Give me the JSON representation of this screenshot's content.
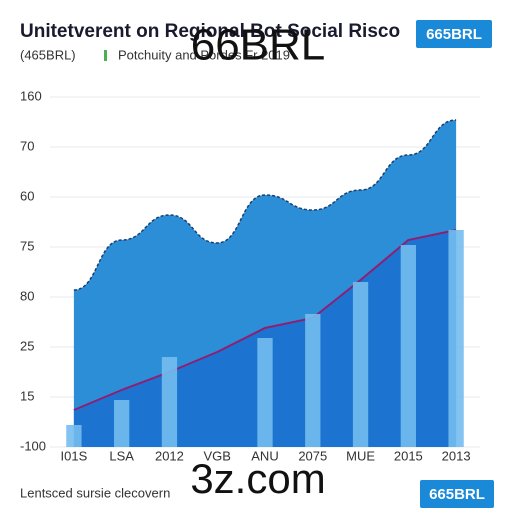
{
  "chart_data": {
    "type": "area-line-bar",
    "title": "Unitetverent on Regional Bot Social Risco",
    "subtitle": "(465BRL)",
    "subtitle_note": "Potchuity and Pordes Fr 2019",
    "badge_top": "665BRL",
    "footer": "Lentsced sursie clecovern",
    "badge_bottom": "665BRL",
    "watermarks": [
      "66BRL",
      "3z.com"
    ],
    "categories": [
      "I01S",
      "LSA",
      "2012",
      "VGB",
      "ANU",
      "2075",
      "MUE",
      "2015",
      "2013"
    ],
    "series": [
      {
        "kind": "area",
        "color": "#2b8ed7",
        "values": [
          3.14,
          4.14,
          4.64,
          4.08,
          5.04,
          4.74,
          5.14,
          5.84,
          6.54
        ]
      },
      {
        "kind": "line",
        "color": "#8e1f73",
        "values": [
          0.74,
          1.14,
          1.5,
          1.9,
          2.38,
          2.58,
          3.34,
          4.14,
          4.34
        ]
      },
      {
        "kind": "bar",
        "color": "#74bdf0",
        "values": [
          0.44,
          0.94,
          1.8,
          null,
          2.18,
          2.66,
          3.3,
          4.04,
          4.34
        ]
      }
    ],
    "under_line_color": "#1c74d0",
    "ylim": [
      0,
      7
    ],
    "yticks": [
      {
        "value": 0,
        "label": "-100"
      },
      {
        "value": 1,
        "label": "15"
      },
      {
        "value": 2,
        "label": "25"
      },
      {
        "value": 3,
        "label": "80"
      },
      {
        "value": 4,
        "label": "75"
      },
      {
        "value": 5,
        "label": "60"
      },
      {
        "value": 6,
        "label": "70"
      },
      {
        "value": 7,
        "label": "160"
      }
    ],
    "grid": true
  }
}
